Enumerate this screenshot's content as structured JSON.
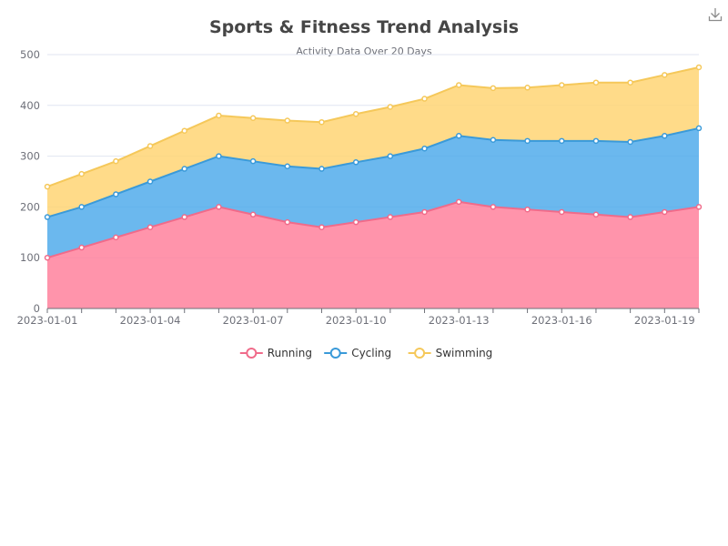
{
  "chart_data": {
    "type": "area",
    "stacked": true,
    "title": "Sports & Fitness Trend Analysis",
    "subtitle": "Activity Data Over 20 Days",
    "x": [
      "2023-01-01",
      "2023-01-02",
      "2023-01-03",
      "2023-01-04",
      "2023-01-05",
      "2023-01-06",
      "2023-01-07",
      "2023-01-08",
      "2023-01-09",
      "2023-01-10",
      "2023-01-11",
      "2023-01-12",
      "2023-01-13",
      "2023-01-14",
      "2023-01-15",
      "2023-01-16",
      "2023-01-17",
      "2023-01-18",
      "2023-01-19",
      "2023-01-20"
    ],
    "x_tick_labels": [
      "2023-01-01",
      "2023-01-04",
      "2023-01-07",
      "2023-01-10",
      "2023-01-13",
      "2023-01-16",
      "2023-01-19"
    ],
    "y_ticks": [
      0,
      100,
      200,
      300,
      400,
      500
    ],
    "ylim": [
      0,
      500
    ],
    "grid": true,
    "legend_position": "bottom",
    "series": [
      {
        "name": "Running",
        "color": "#ff7d99",
        "line_color": "#f06b8a",
        "values": [
          100,
          120,
          140,
          160,
          180,
          200,
          185,
          170,
          160,
          170,
          180,
          190,
          210,
          200,
          195,
          190,
          185,
          180,
          190,
          200
        ]
      },
      {
        "name": "Cycling",
        "color": "#4aa8ea",
        "line_color": "#3a9ad9",
        "values": [
          80,
          80,
          85,
          90,
          95,
          100,
          105,
          110,
          115,
          118,
          120,
          125,
          130,
          132,
          135,
          140,
          145,
          148,
          150,
          155
        ]
      },
      {
        "name": "Swimming",
        "color": "#ffd36f",
        "line_color": "#f5c85a",
        "values": [
          60,
          65,
          65,
          70,
          75,
          80,
          85,
          90,
          92,
          95,
          97,
          98,
          100,
          102,
          105,
          110,
          115,
          117,
          120,
          120
        ]
      }
    ]
  },
  "toolbar": {
    "download_icon": "download-icon"
  }
}
